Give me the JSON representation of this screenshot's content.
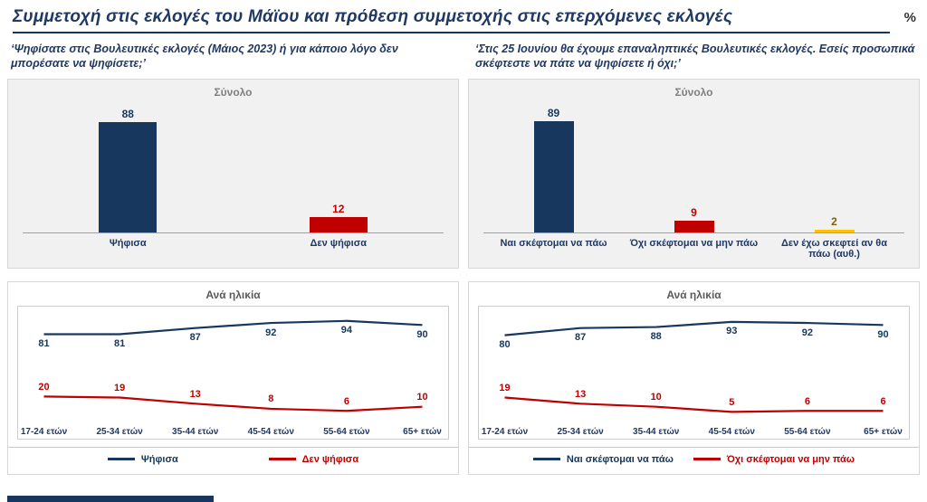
{
  "header": {
    "title": "Συμμετοχή στις εκλογές του Μάϊου και πρόθεση συμμετοχής στις επερχόμενες εκλογές",
    "unit": "%"
  },
  "questions": {
    "left": "‘Ψηφίσατε στις Βουλευτικές εκλογές (Μάιος 2023) ή για κάποιο λόγο δεν μπορέσατε να ψηφίσετε;’",
    "right": "‘Στις 25 Ιουνίου θα έχουμε επαναληπτικές Βουλευτικές εκλογές. Εσείς προσωπικά σκέφτεστε να πάτε να ψηφίσετε ή όχι;’"
  },
  "colors": {
    "navy": "#17375E",
    "red": "#C00000",
    "yellow": "#FFC000"
  },
  "chart_data": [
    {
      "type": "bar",
      "title": "Σύνολο",
      "categories": [
        "Ψήφισα",
        "Δεν ψήφισα"
      ],
      "values": [
        88,
        12
      ],
      "colors": [
        "#17375E",
        "#C00000"
      ],
      "value_colors": [
        "#17375E",
        "#C00000"
      ],
      "ylim": [
        0,
        100
      ]
    },
    {
      "type": "bar",
      "title": "Σύνολο",
      "categories": [
        "Ναι σκέφτομαι να πάω",
        "Όχι σκέφτομαι να μην πάω",
        "Δεν έχω σκεφτεί αν θα πάω (αυθ.)"
      ],
      "values": [
        89,
        9,
        2
      ],
      "colors": [
        "#17375E",
        "#C00000",
        "#FFC000"
      ],
      "value_colors": [
        "#17375E",
        "#C00000",
        "#806000"
      ],
      "ylim": [
        0,
        100
      ]
    },
    {
      "type": "line",
      "title": "Ανά ηλικία",
      "categories": [
        "17-24 ετών",
        "25-34 ετών",
        "35-44 ετών",
        "45-54 ετών",
        "55-64 ετών",
        "65+ ετών"
      ],
      "series": [
        {
          "name": "Ψήφισα",
          "color": "#17375E",
          "values": [
            81,
            81,
            87,
            92,
            94,
            90
          ],
          "label_pos": "below"
        },
        {
          "name": "Δεν ψήφισα",
          "color": "#C00000",
          "values": [
            20,
            19,
            13,
            8,
            6,
            10
          ],
          "label_pos": "above"
        }
      ],
      "ylim": [
        0,
        100
      ],
      "legend_position": "bottom"
    },
    {
      "type": "line",
      "title": "Ανά ηλικία",
      "categories": [
        "17-24 ετών",
        "25-34 ετών",
        "35-44 ετών",
        "45-54 ετών",
        "55-64 ετών",
        "65+ ετών"
      ],
      "series": [
        {
          "name": "Ναι σκέφτομαι να πάω",
          "color": "#17375E",
          "values": [
            80,
            87,
            88,
            93,
            92,
            90
          ],
          "label_pos": "below"
        },
        {
          "name": "Όχι σκέφτομαι να μην πάω",
          "color": "#C00000",
          "values": [
            19,
            13,
            10,
            5,
            6,
            6
          ],
          "label_pos": "above"
        }
      ],
      "ylim": [
        0,
        100
      ],
      "legend_position": "bottom"
    }
  ]
}
